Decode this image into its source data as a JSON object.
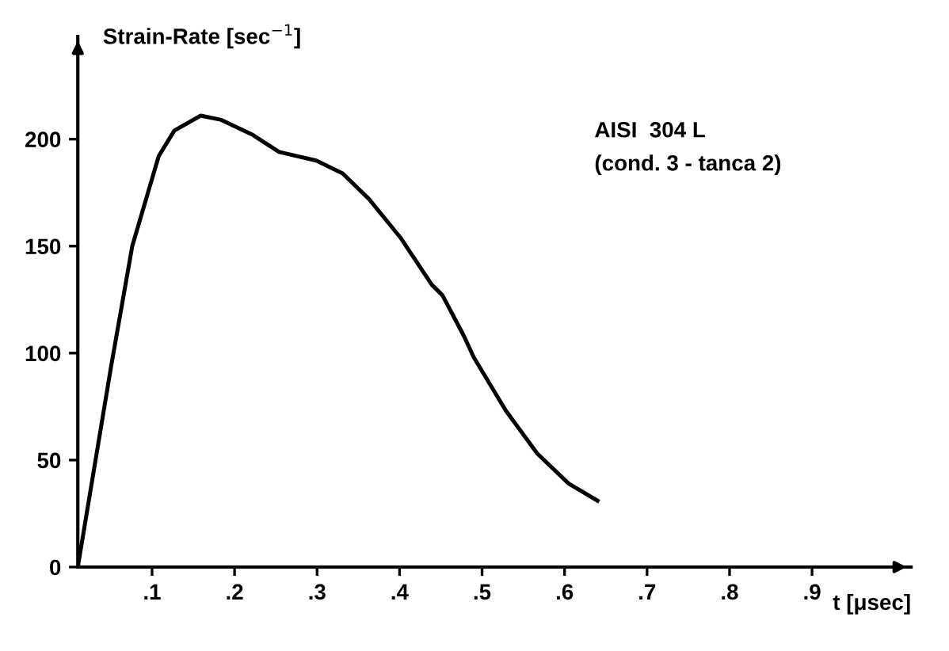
{
  "chart_data": {
    "type": "line",
    "xlabel": "t [μsec]",
    "ylabel": "Strain-Rate [sec$^{−1}$]",
    "annotations": [
      "AISI  304 L\n(cond. 3 - tanca 2)"
    ],
    "x": [
      0.01,
      0.05,
      0.076,
      0.108,
      0.127,
      0.159,
      0.184,
      0.222,
      0.254,
      0.299,
      0.331,
      0.363,
      0.401,
      0.439,
      0.452,
      0.478,
      0.49,
      0.529,
      0.567,
      0.605,
      0.64
    ],
    "series": [
      {
        "color": "#000000",
        "values": [
          0,
          93,
          150,
          192,
          204,
          211,
          209,
          202,
          194,
          190,
          184,
          172,
          154,
          132,
          127,
          108,
          98,
          73,
          53,
          39,
          31
        ]
      }
    ],
    "xlim": [
      0.01,
      1.02
    ],
    "ylim": [
      0,
      248
    ],
    "xticks": [
      {
        "value": 0.1,
        "label": ".1"
      },
      {
        "value": 0.2,
        "label": ".2"
      },
      {
        "value": 0.3,
        "label": ".3"
      },
      {
        "value": 0.4,
        "label": ".4"
      },
      {
        "value": 0.5,
        "label": ".5"
      },
      {
        "value": 0.6,
        "label": ".6"
      },
      {
        "value": 0.7,
        "label": ".7"
      },
      {
        "value": 0.8,
        "label": ".8"
      },
      {
        "value": 0.9,
        "label": ".9"
      }
    ],
    "yticks": [
      0,
      50,
      100,
      150,
      200
    ],
    "grid": false,
    "legend": false,
    "marker": "none",
    "line_style": "solid"
  }
}
